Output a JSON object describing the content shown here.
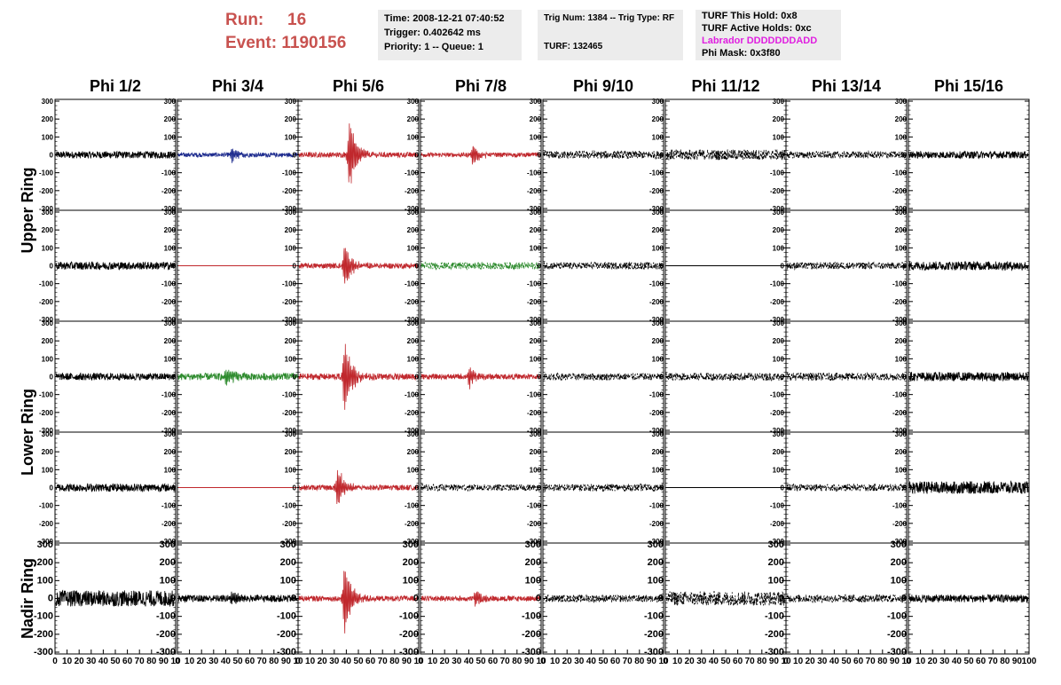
{
  "header": {
    "run_label": "Run:",
    "run_value": "16",
    "event_label": "Event:",
    "event_value": "1190156",
    "time": "Time: 2008-12-21 07:40:52",
    "trigger": "Trigger: 0.402642 ms",
    "priority": "Priority: 1 -- Queue: 1",
    "trig_num": "Trig Num: 1384 -- Trig Type: RF",
    "turf": "TURF: 132465",
    "turf_hold": "TURF This Hold: 0x8",
    "turf_active": "TURF Active Holds: 0xc",
    "labrador": "Labrador DDDDDDDADD",
    "phi_mask": "Phi Mask: 0x3f80"
  },
  "colors": {
    "run": "#c8524f",
    "labrador": "#e020e0",
    "black": "#000000",
    "red": "#c0282d",
    "blue": "#1f2d8f",
    "green": "#2e8b2e"
  },
  "chart_data": {
    "type": "line",
    "columns": [
      "Phi 1/2",
      "Phi 3/4",
      "Phi 5/6",
      "Phi 7/8",
      "Phi 9/10",
      "Phi 11/12",
      "Phi 13/14",
      "Phi 15/16"
    ],
    "ring_labels": [
      {
        "label": "Upper Ring",
        "rows": [
          0,
          1
        ]
      },
      {
        "label": "Lower Ring",
        "rows": [
          2,
          3
        ]
      },
      {
        "label": "Nadir Ring",
        "rows": [
          4
        ]
      }
    ],
    "ylim": [
      -310,
      310
    ],
    "xlim": [
      0,
      100
    ],
    "y_ticks": [
      "300",
      "200",
      "100",
      "0",
      "-100",
      "-200",
      "-300"
    ],
    "x_ticks": [
      "0",
      "10",
      "20",
      "30",
      "40",
      "50",
      "60",
      "70",
      "80",
      "90",
      "10"
    ],
    "x_ticks_last": [
      "0",
      "10",
      "20",
      "30",
      "40",
      "50",
      "60",
      "70",
      "80",
      "90",
      "100"
    ],
    "traces": [
      [
        {
          "color": "black",
          "amp": 20,
          "pulse": 0,
          "center": 50,
          "style": "solid"
        },
        {
          "color": "blue",
          "amp": 12,
          "pulse": 50,
          "center": 45,
          "style": "solid"
        },
        {
          "color": "red",
          "amp": 15,
          "pulse": 250,
          "center": 42,
          "style": "solid"
        },
        {
          "color": "red",
          "amp": 12,
          "pulse": 70,
          "center": 43,
          "style": "solid"
        },
        {
          "color": "black",
          "amp": 22,
          "pulse": 0,
          "center": 50,
          "style": "dashed"
        },
        {
          "color": "black",
          "amp": 30,
          "pulse": 0,
          "center": 30,
          "style": "dashed"
        },
        {
          "color": "black",
          "amp": 20,
          "pulse": 0,
          "center": 50,
          "style": "dashed"
        },
        {
          "color": "black",
          "amp": 20,
          "pulse": 0,
          "center": 50,
          "style": "solid"
        }
      ],
      [
        {
          "color": "black",
          "amp": 22,
          "pulse": 0,
          "center": 50,
          "style": "solid"
        },
        {
          "color": "red",
          "amp": 0,
          "pulse": 0,
          "center": 50,
          "style": "flat"
        },
        {
          "color": "red",
          "amp": 15,
          "pulse": 150,
          "center": 38,
          "style": "solid"
        },
        {
          "color": "green",
          "amp": 20,
          "pulse": 0,
          "center": 50,
          "style": "dashed"
        },
        {
          "color": "black",
          "amp": 20,
          "pulse": 0,
          "center": 50,
          "style": "dashed"
        },
        {
          "color": "black",
          "amp": 0,
          "pulse": 0,
          "center": 50,
          "style": "flat"
        },
        {
          "color": "black",
          "amp": 20,
          "pulse": 0,
          "center": 50,
          "style": "dashed"
        },
        {
          "color": "black",
          "amp": 25,
          "pulse": 0,
          "center": 50,
          "style": "solid"
        }
      ],
      [
        {
          "color": "black",
          "amp": 20,
          "pulse": 0,
          "center": 50,
          "style": "solid"
        },
        {
          "color": "green",
          "amp": 20,
          "pulse": 60,
          "center": 40,
          "style": "solid"
        },
        {
          "color": "red",
          "amp": 18,
          "pulse": 240,
          "center": 38,
          "style": "solid"
        },
        {
          "color": "red",
          "amp": 15,
          "pulse": 70,
          "center": 40,
          "style": "solid"
        },
        {
          "color": "black",
          "amp": 20,
          "pulse": 0,
          "center": 50,
          "style": "dashed"
        },
        {
          "color": "black",
          "amp": 22,
          "pulse": 0,
          "center": 50,
          "style": "dashed"
        },
        {
          "color": "black",
          "amp": 22,
          "pulse": 0,
          "center": 50,
          "style": "dashed"
        },
        {
          "color": "black",
          "amp": 25,
          "pulse": 0,
          "center": 50,
          "style": "solid"
        }
      ],
      [
        {
          "color": "black",
          "amp": 22,
          "pulse": 0,
          "center": 50,
          "style": "solid"
        },
        {
          "color": "red",
          "amp": 0,
          "pulse": 0,
          "center": 50,
          "style": "flat"
        },
        {
          "color": "red",
          "amp": 15,
          "pulse": 140,
          "center": 32,
          "style": "solid"
        },
        {
          "color": "black",
          "amp": 18,
          "pulse": 0,
          "center": 50,
          "style": "dashed"
        },
        {
          "color": "black",
          "amp": 20,
          "pulse": 0,
          "center": 50,
          "style": "dashed"
        },
        {
          "color": "black",
          "amp": 0,
          "pulse": 0,
          "center": 50,
          "style": "flat"
        },
        {
          "color": "black",
          "amp": 20,
          "pulse": 0,
          "center": 50,
          "style": "dashed"
        },
        {
          "color": "black",
          "amp": 35,
          "pulse": 0,
          "center": 50,
          "style": "solid"
        }
      ],
      [
        {
          "color": "black",
          "amp": 45,
          "pulse": 0,
          "center": 50,
          "style": "solid"
        },
        {
          "color": "black",
          "amp": 20,
          "pulse": 50,
          "center": 45,
          "style": "solid"
        },
        {
          "color": "red",
          "amp": 15,
          "pulse": 250,
          "center": 38,
          "style": "solid"
        },
        {
          "color": "red",
          "amp": 15,
          "pulse": 50,
          "center": 45,
          "style": "solid"
        },
        {
          "color": "black",
          "amp": 20,
          "pulse": 0,
          "center": 50,
          "style": "dashed"
        },
        {
          "color": "black",
          "amp": 40,
          "pulse": 0,
          "center": 25,
          "style": "dashed"
        },
        {
          "color": "black",
          "amp": 22,
          "pulse": 0,
          "center": 50,
          "style": "dashed"
        },
        {
          "color": "black",
          "amp": 22,
          "pulse": 0,
          "center": 50,
          "style": "solid"
        }
      ]
    ]
  }
}
